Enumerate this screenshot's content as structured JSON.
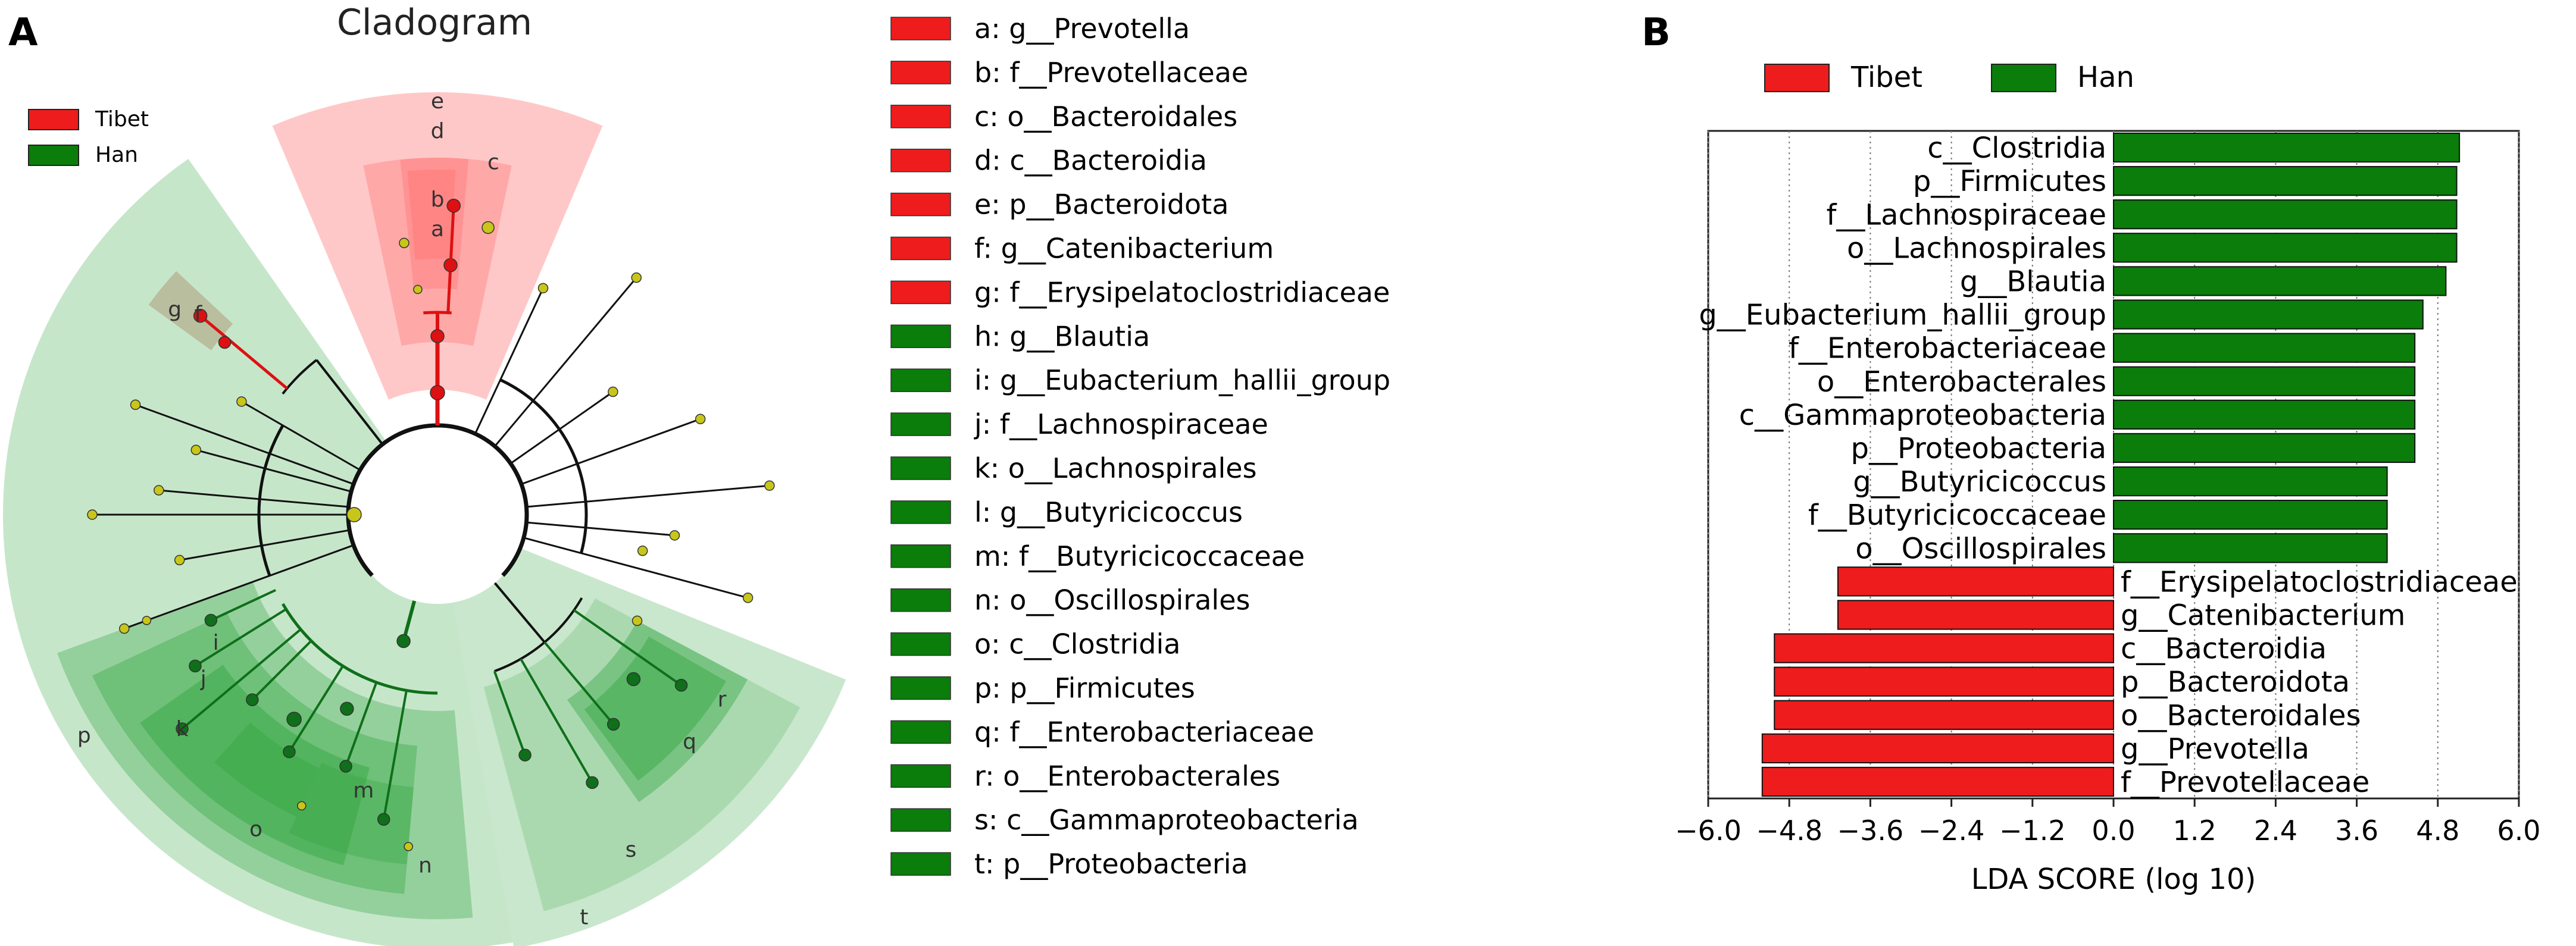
{
  "panel_a": {
    "panel_letter": "A",
    "title": "Cladogram",
    "legend": [
      {
        "label": "Tibet",
        "color": "#ee1c1c"
      },
      {
        "label": "Han",
        "color": "#0a7d0a"
      }
    ],
    "clade_letters": [
      "e",
      "d",
      "c",
      "b",
      "a",
      "g",
      "f",
      "p",
      "k",
      "j",
      "i",
      "o",
      "m",
      "n",
      "q",
      "r",
      "s",
      "t"
    ],
    "key": [
      {
        "letter": "a",
        "label": "a: g__Prevotella",
        "group": "Tibet"
      },
      {
        "letter": "b",
        "label": "b: f__Prevotellaceae",
        "group": "Tibet"
      },
      {
        "letter": "c",
        "label": "c: o__Bacteroidales",
        "group": "Tibet"
      },
      {
        "letter": "d",
        "label": "d: c__Bacteroidia",
        "group": "Tibet"
      },
      {
        "letter": "e",
        "label": "e: p__Bacteroidota",
        "group": "Tibet"
      },
      {
        "letter": "f",
        "label": "f: g__Catenibacterium",
        "group": "Tibet"
      },
      {
        "letter": "g",
        "label": "g: f__Erysipelatoclostridiaceae",
        "group": "Tibet"
      },
      {
        "letter": "h",
        "label": "h: g__Blautia",
        "group": "Han"
      },
      {
        "letter": "i",
        "label": "i: g__Eubacterium_hallii_group",
        "group": "Han"
      },
      {
        "letter": "j",
        "label": "j: f__Lachnospiraceae",
        "group": "Han"
      },
      {
        "letter": "k",
        "label": "k: o__Lachnospirales",
        "group": "Han"
      },
      {
        "letter": "l",
        "label": "l: g__Butyricicoccus",
        "group": "Han"
      },
      {
        "letter": "m",
        "label": "m: f__Butyricicoccaceae",
        "group": "Han"
      },
      {
        "letter": "n",
        "label": "n: o__Oscillospirales",
        "group": "Han"
      },
      {
        "letter": "o",
        "label": "o: c__Clostridia",
        "group": "Han"
      },
      {
        "letter": "p",
        "label": "p: p__Firmicutes",
        "group": "Han"
      },
      {
        "letter": "q",
        "label": "q: f__Enterobacteriaceae",
        "group": "Han"
      },
      {
        "letter": "r",
        "label": "r: o__Enterobacterales",
        "group": "Han"
      },
      {
        "letter": "s",
        "label": "s: c__Gammaproteobacteria",
        "group": "Han"
      },
      {
        "letter": "t",
        "label": "t: p__Proteobacteria",
        "group": "Han"
      }
    ]
  },
  "chart_data": {
    "type": "bar",
    "orientation": "horizontal",
    "panel_letter": "B",
    "xlabel": "LDA SCORE (log 10)",
    "xlim": [
      -6.0,
      6.0
    ],
    "xticks": [
      "−6.0",
      "−4.8",
      "−3.6",
      "−2.4",
      "−1.2",
      "0.0",
      "1.2",
      "2.4",
      "3.6",
      "4.8",
      "6.0"
    ],
    "xtick_values": [
      -6.0,
      -4.8,
      -3.6,
      -2.4,
      -1.2,
      0.0,
      1.2,
      2.4,
      3.6,
      4.8,
      6.0
    ],
    "grid": "vertical dotted",
    "legend_position": "top",
    "groups": [
      {
        "name": "Tibet",
        "color": "#ee1c1c"
      },
      {
        "name": "Han",
        "color": "#0a7d0a"
      }
    ],
    "categories": [
      "c__Clostridia",
      "p__Firmicutes",
      "f__Lachnospiraceae",
      "o__Lachnospirales",
      "g__Blautia",
      "g__Eubacterium_hallii_group",
      "f__Enterobacteriaceae",
      "o__Enterobacterales",
      "c__Gammaproteobacteria",
      "p__Proteobacteria",
      "g__Butyricicoccus",
      "f__Butyricicoccaceae",
      "o__Oscillospirales",
      "f__Erysipelatoclostridiaceae",
      "g__Catenibacterium",
      "c__Bacteroidia",
      "p__Bacteroidota",
      "o__Bacteroidales",
      "g__Prevotella",
      "f__Prevotellaceae"
    ],
    "values": [
      5.12,
      5.08,
      5.08,
      5.08,
      4.92,
      4.58,
      4.46,
      4.46,
      4.46,
      4.46,
      4.05,
      4.05,
      4.05,
      -4.08,
      -4.08,
      -5.02,
      -5.02,
      -5.02,
      -5.2,
      -5.2
    ],
    "bar_groups": [
      "Han",
      "Han",
      "Han",
      "Han",
      "Han",
      "Han",
      "Han",
      "Han",
      "Han",
      "Han",
      "Han",
      "Han",
      "Han",
      "Tibet",
      "Tibet",
      "Tibet",
      "Tibet",
      "Tibet",
      "Tibet",
      "Tibet"
    ]
  }
}
